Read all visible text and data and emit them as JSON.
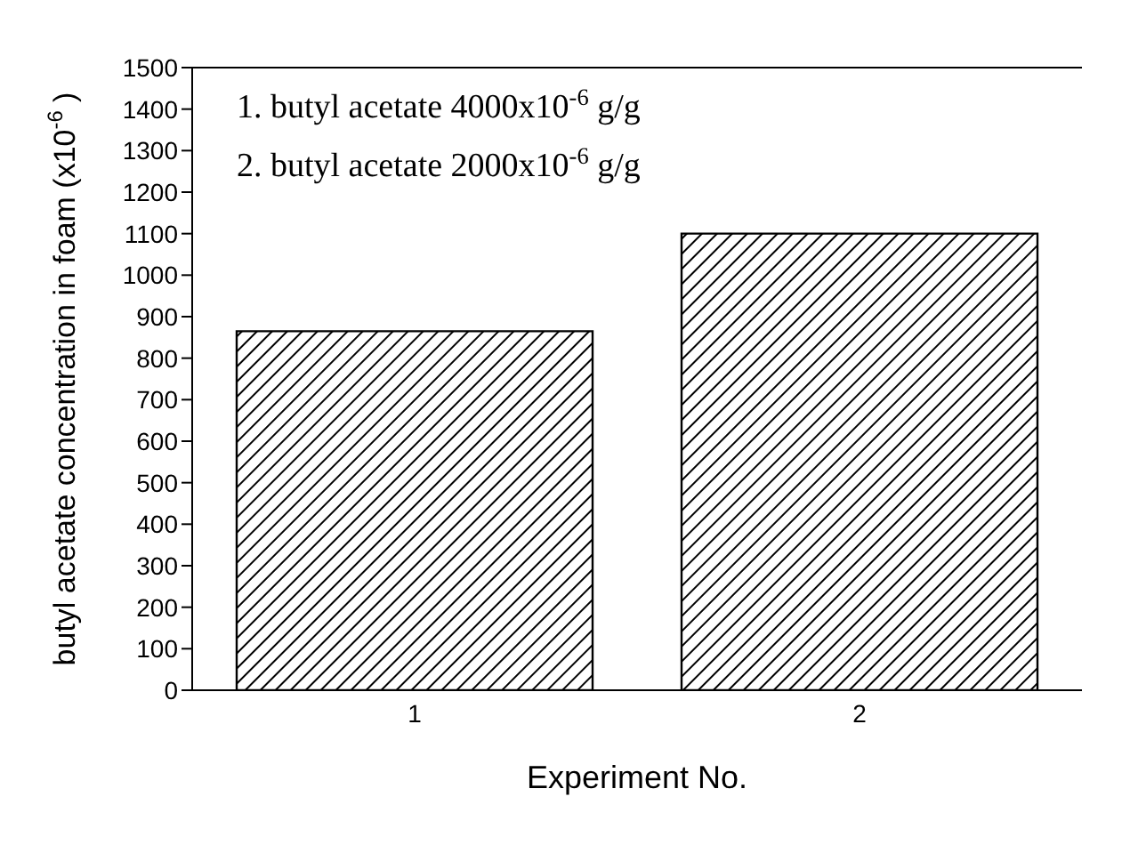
{
  "chart_data": {
    "type": "bar",
    "xlabel": "Experiment No.",
    "ylabel": "butyl acetate concentration in foam (x10$^{-6}$)",
    "categories": [
      "1",
      "2"
    ],
    "values": [
      865,
      1100
    ],
    "color": "#000000",
    "ylim": [
      0,
      1500
    ],
    "yticks": [
      0,
      100,
      200,
      300,
      400,
      500,
      600,
      700,
      800,
      900,
      1000,
      1100,
      1200,
      1300,
      1400,
      1500
    ],
    "grid": false,
    "annotations": [
      "1. butyl acetate 4000x10$^{-6}$ g/g",
      "2. butyl acetate 2000x10$^{-6}$ g/g"
    ]
  }
}
